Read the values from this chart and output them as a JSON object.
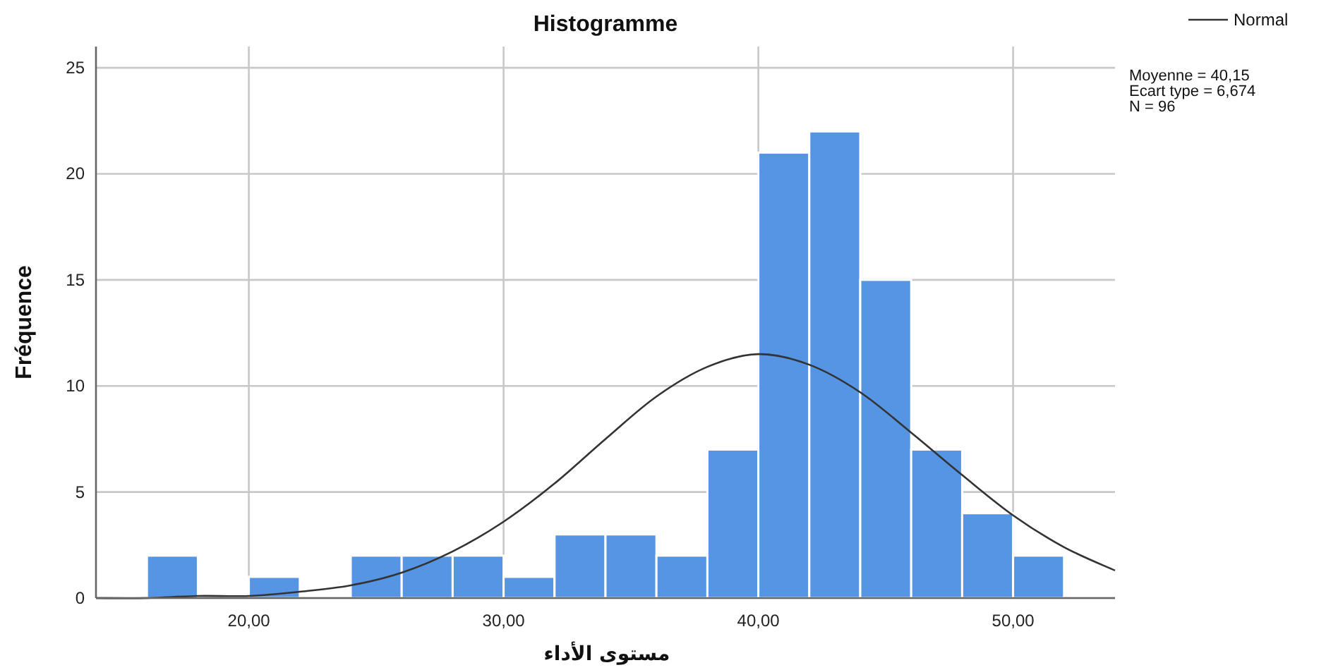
{
  "chart_data": {
    "type": "histogram",
    "title": "Histogramme",
    "xlabel": "مستوى الأداء",
    "ylabel": "Fréquence",
    "series": [
      {
        "color": "#5595e3",
        "bins": [
          16,
          18,
          20,
          22,
          24,
          26,
          28,
          30,
          32,
          34,
          36,
          38,
          40,
          42,
          44,
          46,
          48,
          50,
          52
        ],
        "values": [
          2,
          0,
          1,
          0,
          2,
          2,
          2,
          1,
          3,
          3,
          2,
          7,
          21,
          22,
          15,
          7,
          4,
          2
        ]
      },
      {
        "type": "line",
        "name": "Normal",
        "color": "#333333",
        "x": [
          14,
          16,
          18,
          20,
          22,
          24,
          26,
          28,
          30,
          32,
          34,
          36,
          38,
          40,
          42,
          44,
          46,
          48,
          50,
          52,
          54
        ],
        "values": [
          0.0,
          0.0,
          0.1,
          0.1,
          0.3,
          0.6,
          1.2,
          2.2,
          3.6,
          5.4,
          7.5,
          9.5,
          10.9,
          11.5,
          11.0,
          9.7,
          7.8,
          5.8,
          3.9,
          2.4,
          1.3
        ]
      }
    ],
    "xlim": [
      14,
      54
    ],
    "ylim": [
      0,
      26
    ],
    "xticks": [
      {
        "value": 20,
        "label": "20,00"
      },
      {
        "value": 30,
        "label": "30,00"
      },
      {
        "value": 40,
        "label": "40,00"
      },
      {
        "value": 50,
        "label": "50,00"
      }
    ],
    "yticks": [
      0,
      5,
      10,
      15,
      20,
      25
    ],
    "grid": true,
    "legend": "top right",
    "annotations": [
      "Moyenne = 40,15",
      "Ecart type = 6,674",
      "N = 96"
    ]
  }
}
